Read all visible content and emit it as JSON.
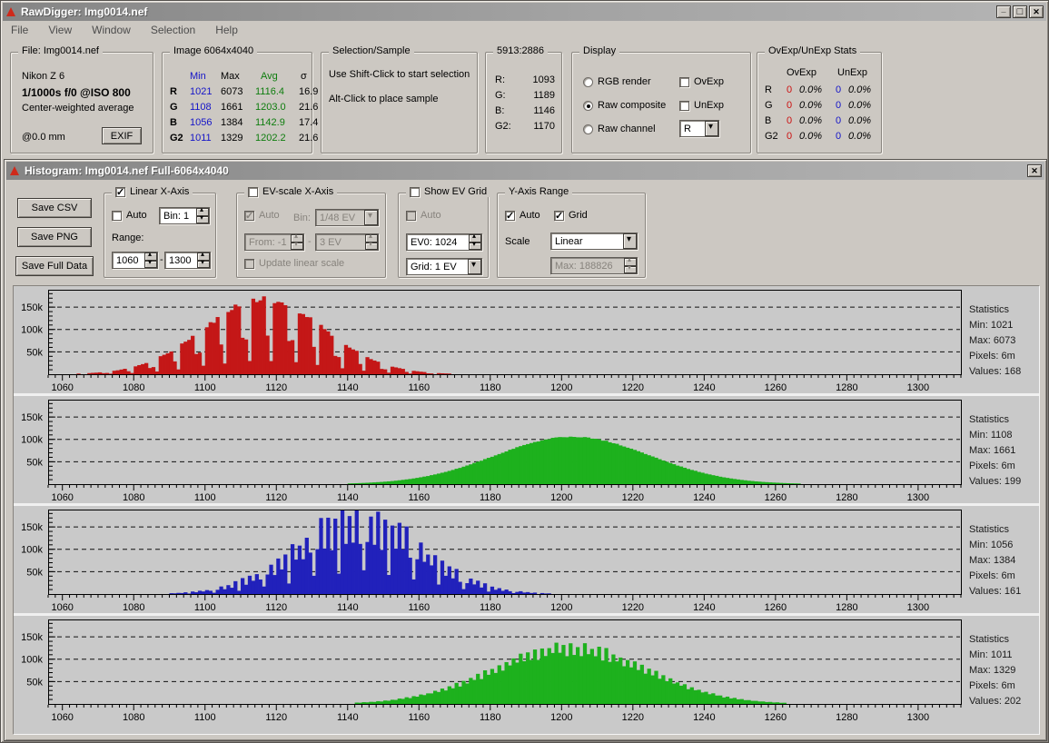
{
  "window": {
    "title": "RawDigger: Img0014.nef",
    "icons": {
      "app": "red-triangle",
      "minimize": "underscore",
      "maximize": "square",
      "close": "x"
    }
  },
  "menu": {
    "items": [
      {
        "label": "File"
      },
      {
        "label": "View"
      },
      {
        "label": "Window"
      },
      {
        "label": "Selection"
      },
      {
        "label": "Help"
      }
    ]
  },
  "file_panel": {
    "title": "File: Img0014.nef",
    "camera": "Nikon Z 6",
    "exposure": "1/1000s f/0 @ISO 800",
    "metering": "Center-weighted average",
    "focal_length": "@0.0 mm",
    "exif_button": "EXIF"
  },
  "image_panel": {
    "title": "Image 6064x4040",
    "columns": [
      "Min",
      "Max",
      "Avg",
      "σ"
    ],
    "rows": [
      {
        "channel": "R",
        "min": "1021",
        "max": "6073",
        "avg": "1116.4",
        "sigma": "16.9"
      },
      {
        "channel": "G",
        "min": "1108",
        "max": "1661",
        "avg": "1203.0",
        "sigma": "21.6"
      },
      {
        "channel": "B",
        "min": "1056",
        "max": "1384",
        "avg": "1142.9",
        "sigma": "17.4"
      },
      {
        "channel": "G2",
        "min": "1011",
        "max": "1329",
        "avg": "1202.2",
        "sigma": "21.6"
      }
    ]
  },
  "selection_panel": {
    "title": "Selection/Sample",
    "hint1": "Use Shift-Click to start selection",
    "hint2": "Alt-Click to place sample"
  },
  "sample_panel": {
    "title": "5913:2886",
    "rows": [
      {
        "label": "R:",
        "value": "1093"
      },
      {
        "label": "G:",
        "value": "1189"
      },
      {
        "label": "B:",
        "value": "1146"
      },
      {
        "label": "G2:",
        "value": "1170"
      }
    ]
  },
  "display_panel": {
    "title": "Display",
    "radios": [
      {
        "label": "RGB render",
        "selected": false
      },
      {
        "label": "Raw composite",
        "selected": true
      },
      {
        "label": "Raw channel",
        "selected": false
      }
    ],
    "overlays": [
      {
        "label": "OvExp",
        "checked": false
      },
      {
        "label": "UnExp",
        "checked": false
      }
    ],
    "channel_value": "R"
  },
  "ovexp_panel": {
    "title": "OvExp/UnExp Stats",
    "columns": [
      "OvExp",
      "UnExp"
    ],
    "rows": [
      {
        "channel": "R",
        "ov_count": "0",
        "ov_pct": "0.0%",
        "un_count": "0",
        "un_pct": "0.0%"
      },
      {
        "channel": "G",
        "ov_count": "0",
        "ov_pct": "0.0%",
        "un_count": "0",
        "un_pct": "0.0%"
      },
      {
        "channel": "B",
        "ov_count": "0",
        "ov_pct": "0.0%",
        "un_count": "0",
        "un_pct": "0.0%"
      },
      {
        "channel": "G2",
        "ov_count": "0",
        "ov_pct": "0.0%",
        "un_count": "0",
        "un_pct": "0.0%"
      }
    ]
  },
  "histogram_window": {
    "title": "Histogram: Img0014.nef Full-6064x4040",
    "save_buttons": [
      {
        "label": "Save CSV"
      },
      {
        "label": "Save PNG"
      },
      {
        "label": "Save Full Data"
      }
    ],
    "linear_x_axis": {
      "title": "Linear X-Axis",
      "enabled": true,
      "auto_label": "Auto",
      "auto_checked": false,
      "bin_value": "Bin: 1",
      "range_label": "Range:",
      "range_from": "1060",
      "separator": "-",
      "range_to": "1300"
    },
    "ev_x_axis": {
      "title": "EV-scale X-Axis",
      "enabled": false,
      "auto_label": "Auto",
      "auto_checked": true,
      "bin_label": "Bin:",
      "bin_value": "1/48 EV",
      "from_value": "From: -1",
      "separator": "-",
      "to_value": "3 EV",
      "update_label": "Update linear scale",
      "update_checked": false
    },
    "ev_grid": {
      "title": "Show EV Grid",
      "enabled": false,
      "auto_label": "Auto",
      "auto_checked": false,
      "ev0_value": "EV0: 1024",
      "grid_value": "Grid: 1 EV"
    },
    "y_axis_range": {
      "title": "Y-Axis Range",
      "auto_label": "Auto",
      "auto_checked": true,
      "grid_label": "Grid",
      "grid_checked": true,
      "scale_label": "Scale",
      "scale_value": "Linear",
      "max_value": "Max: 188826"
    }
  },
  "chart_data": [
    {
      "type": "bar",
      "name": "histogram-R",
      "channel": "R",
      "color": "#c41717",
      "xlim": [
        1056,
        1312
      ],
      "ylim": [
        0,
        188826
      ],
      "x_tick_start": 1060,
      "x_tick_step": 20,
      "x_tick_end": 1300,
      "x_minor_step": 2,
      "y_gridlines": [
        {
          "value": 50000,
          "label": "50k"
        },
        {
          "value": 100000,
          "label": "100k"
        },
        {
          "value": 150000,
          "label": "150k"
        }
      ],
      "y_minor_step": 10000,
      "grid_dashed": true,
      "distribution": {
        "shape": "gaussian",
        "center": 1116.4,
        "sigma": 16.9,
        "peak": 168000,
        "x_start": 1064,
        "x_end": 1172,
        "jitter": 0.08,
        "pattern": {
          "type": "comb",
          "period": 6.5,
          "phase": 1,
          "steps": [
            [
              0.6,
              1.0
            ],
            [
              0.78,
              0.5
            ],
            [
              1.0,
              0.18
            ]
          ]
        }
      },
      "stats_lines": [
        "Statistics",
        "Min: 1021",
        "Max: 6073",
        "Pixels: 6m",
        "Values: 168"
      ]
    },
    {
      "type": "bar",
      "name": "histogram-G",
      "channel": "G",
      "color": "#1db11d",
      "xlim": [
        1056,
        1312
      ],
      "ylim": [
        0,
        188826
      ],
      "x_tick_start": 1060,
      "x_tick_step": 20,
      "x_tick_end": 1300,
      "x_minor_step": 2,
      "y_gridlines": [
        {
          "value": 50000,
          "label": "50k"
        },
        {
          "value": 100000,
          "label": "100k"
        },
        {
          "value": 150000,
          "label": "150k"
        }
      ],
      "y_minor_step": 10000,
      "grid_dashed": true,
      "distribution": {
        "shape": "gaussian",
        "center": 1203.0,
        "sigma": 21.6,
        "peak": 106000,
        "x_start": 1140,
        "x_end": 1266,
        "jitter": 0.02,
        "pattern": {
          "type": "solid"
        }
      },
      "stats_lines": [
        "Statistics",
        "Min: 1108",
        "Max: 1661",
        "Pixels: 6m",
        "Values: 199"
      ]
    },
    {
      "type": "bar",
      "name": "histogram-B",
      "channel": "B",
      "color": "#2121bb",
      "xlim": [
        1056,
        1312
      ],
      "ylim": [
        0,
        188826
      ],
      "x_tick_start": 1060,
      "x_tick_step": 20,
      "x_tick_end": 1300,
      "x_minor_step": 2,
      "y_gridlines": [
        {
          "value": 50000,
          "label": "50k"
        },
        {
          "value": 100000,
          "label": "100k"
        },
        {
          "value": 150000,
          "label": "150k"
        }
      ],
      "y_minor_step": 10000,
      "grid_dashed": true,
      "distribution": {
        "shape": "gaussian",
        "center": 1142.9,
        "sigma": 17.4,
        "peak": 186000,
        "x_start": 1090,
        "x_end": 1196,
        "jitter": 0.22,
        "pattern": {
          "type": "alt",
          "even": 1.0,
          "odd": 0.63,
          "notch_period": 7,
          "notch_phase": 3,
          "notch_weight": 0.26
        }
      },
      "stats_lines": [
        "Statistics",
        "Min: 1056",
        "Max: 1384",
        "Pixels: 6m",
        "Values: 161"
      ]
    },
    {
      "type": "bar",
      "name": "histogram-G2",
      "channel": "G2",
      "color": "#1db11d",
      "xlim": [
        1056,
        1312
      ],
      "ylim": [
        0,
        188826
      ],
      "x_tick_start": 1060,
      "x_tick_step": 20,
      "x_tick_end": 1300,
      "x_minor_step": 2,
      "y_gridlines": [
        {
          "value": 50000,
          "label": "50k"
        },
        {
          "value": 100000,
          "label": "100k"
        },
        {
          "value": 150000,
          "label": "150k"
        }
      ],
      "y_minor_step": 10000,
      "grid_dashed": true,
      "distribution": {
        "shape": "gaussian",
        "center": 1202.2,
        "sigma": 21.6,
        "peak": 112000,
        "x_start": 1142,
        "x_end": 1262,
        "jitter": 0.1,
        "pattern": {
          "type": "spike",
          "period": 2,
          "gain": 1.2
        }
      },
      "stats_lines": [
        "Statistics",
        "Min: 1011",
        "Max: 1329",
        "Pixels: 6m",
        "Values: 202"
      ]
    }
  ]
}
